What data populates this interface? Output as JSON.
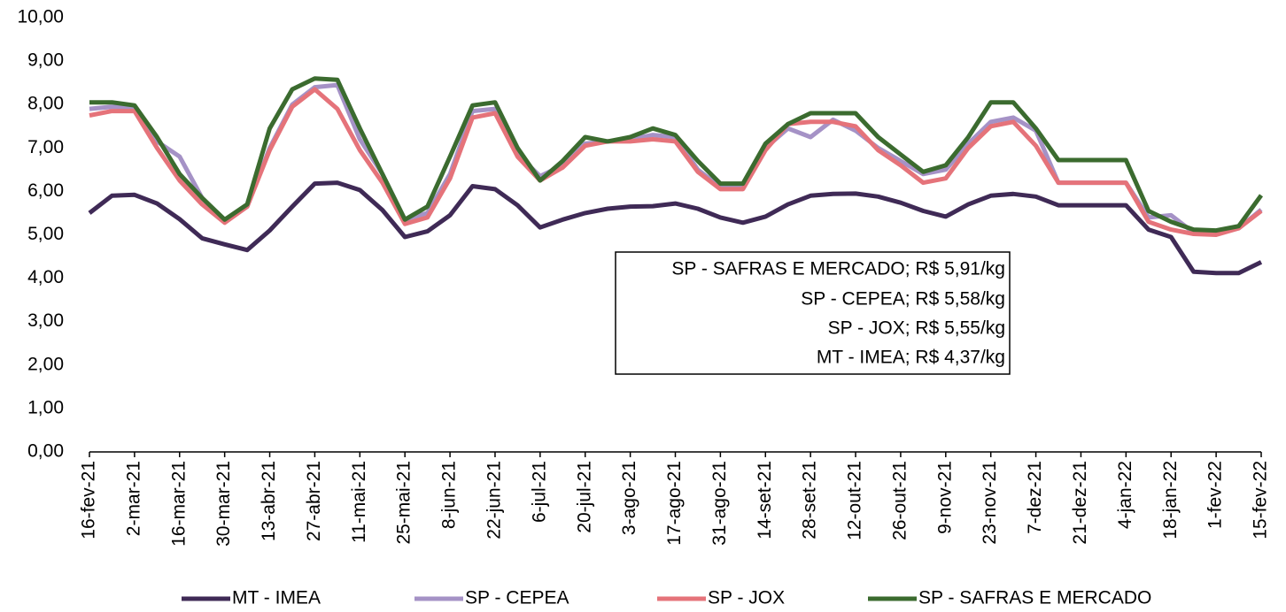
{
  "chart_data": {
    "type": "line",
    "categories": [
      "16-fev-21",
      null,
      "2-mar-21",
      null,
      "16-mar-21",
      null,
      "30-mar-21",
      null,
      "13-abr-21",
      null,
      "27-abr-21",
      null,
      "11-mai-21",
      null,
      "25-mai-21",
      null,
      "8-jun-21",
      null,
      "22-jun-21",
      null,
      "6-jul-21",
      null,
      "20-jul-21",
      null,
      "3-ago-21",
      null,
      "17-ago-21",
      null,
      "31-ago-21",
      null,
      "14-set-21",
      null,
      "28-set-21",
      null,
      "12-out-21",
      null,
      "26-out-21",
      null,
      "9-nov-21",
      null,
      "23-nov-21",
      null,
      "7-dez-21",
      null,
      "21-dez-21",
      null,
      "4-jan-22",
      null,
      "18-jan-22",
      null,
      "1-fev-22",
      null,
      "15-fev-22"
    ],
    "series": [
      {
        "name": "MT - IMEA",
        "color": "#3f2a56",
        "values": [
          5.5,
          5.9,
          5.92,
          5.72,
          5.36,
          4.92,
          4.78,
          4.65,
          5.1,
          5.65,
          6.18,
          6.2,
          6.03,
          5.57,
          4.95,
          5.08,
          5.45,
          6.12,
          6.05,
          5.68,
          5.17,
          5.35,
          5.5,
          5.6,
          5.65,
          5.66,
          5.72,
          5.6,
          5.4,
          5.28,
          5.42,
          5.7,
          5.9,
          5.94,
          5.95,
          5.88,
          5.74,
          5.55,
          5.42,
          5.7,
          5.9,
          5.94,
          5.88,
          5.68,
          5.68,
          5.68,
          5.68,
          5.12,
          4.95,
          4.15,
          4.12,
          4.12,
          4.37
        ]
      },
      {
        "name": "SP - CEPEA",
        "color": "#a592c6",
        "values": [
          7.9,
          7.95,
          7.93,
          7.15,
          6.8,
          5.85,
          5.3,
          5.65,
          7.0,
          8.0,
          8.4,
          8.45,
          7.2,
          6.4,
          5.35,
          5.5,
          6.4,
          7.85,
          7.9,
          6.85,
          6.35,
          6.6,
          7.1,
          7.15,
          7.2,
          7.3,
          7.25,
          6.5,
          6.1,
          6.1,
          7.0,
          7.45,
          7.25,
          7.65,
          7.4,
          7.0,
          6.7,
          6.4,
          6.5,
          7.1,
          7.6,
          7.7,
          7.4,
          6.2,
          6.2,
          6.2,
          6.2,
          5.4,
          5.45,
          5.05,
          5.05,
          5.15,
          5.58
        ]
      },
      {
        "name": "SP - JOX",
        "color": "#e5737a",
        "values": [
          7.75,
          7.85,
          7.85,
          7.0,
          6.25,
          5.7,
          5.28,
          5.65,
          6.95,
          7.95,
          8.35,
          7.9,
          6.95,
          6.2,
          5.25,
          5.4,
          6.3,
          7.7,
          7.8,
          6.8,
          6.25,
          6.55,
          7.05,
          7.15,
          7.15,
          7.2,
          7.15,
          6.45,
          6.05,
          6.05,
          6.95,
          7.55,
          7.6,
          7.6,
          7.5,
          6.95,
          6.6,
          6.2,
          6.3,
          7.0,
          7.5,
          7.6,
          7.05,
          6.2,
          6.2,
          6.2,
          6.2,
          5.3,
          5.12,
          5.02,
          5.0,
          5.15,
          5.55
        ]
      },
      {
        "name": "SP - SAFRAS E MERCADO",
        "color": "#3b6b2f",
        "values": [
          8.05,
          8.05,
          7.98,
          7.25,
          6.4,
          5.85,
          5.35,
          5.7,
          7.45,
          8.35,
          8.6,
          8.57,
          7.45,
          6.4,
          5.35,
          5.65,
          6.8,
          7.98,
          8.05,
          7.0,
          6.25,
          6.7,
          7.25,
          7.15,
          7.25,
          7.45,
          7.3,
          6.7,
          6.18,
          6.18,
          7.1,
          7.55,
          7.8,
          7.8,
          7.8,
          7.25,
          6.85,
          6.45,
          6.6,
          7.25,
          8.05,
          8.05,
          7.45,
          6.72,
          6.72,
          6.72,
          6.72,
          5.55,
          5.3,
          5.12,
          5.1,
          5.2,
          5.91
        ]
      }
    ],
    "ylim": [
      0,
      10
    ],
    "yticks": [
      {
        "value": 0,
        "label": "0,00"
      },
      {
        "value": 1,
        "label": "1,00"
      },
      {
        "value": 2,
        "label": "2,00"
      },
      {
        "value": 3,
        "label": "3,00"
      },
      {
        "value": 4,
        "label": "4,00"
      },
      {
        "value": 5,
        "label": "5,00"
      },
      {
        "value": 6,
        "label": "6,00"
      },
      {
        "value": 7,
        "label": "7,00"
      },
      {
        "value": 8,
        "label": "8,00"
      },
      {
        "value": 9,
        "label": "9,00"
      },
      {
        "value": 10,
        "label": "10,00"
      }
    ],
    "annotations": [
      "SP - SAFRAS E MERCADO; R$ 5,91/kg",
      "SP - CEPEA; R$ 5,58/kg",
      "SP - JOX; R$ 5,55/kg",
      "MT - IMEA; R$ 4,37/kg"
    ],
    "legend": "bottom"
  }
}
